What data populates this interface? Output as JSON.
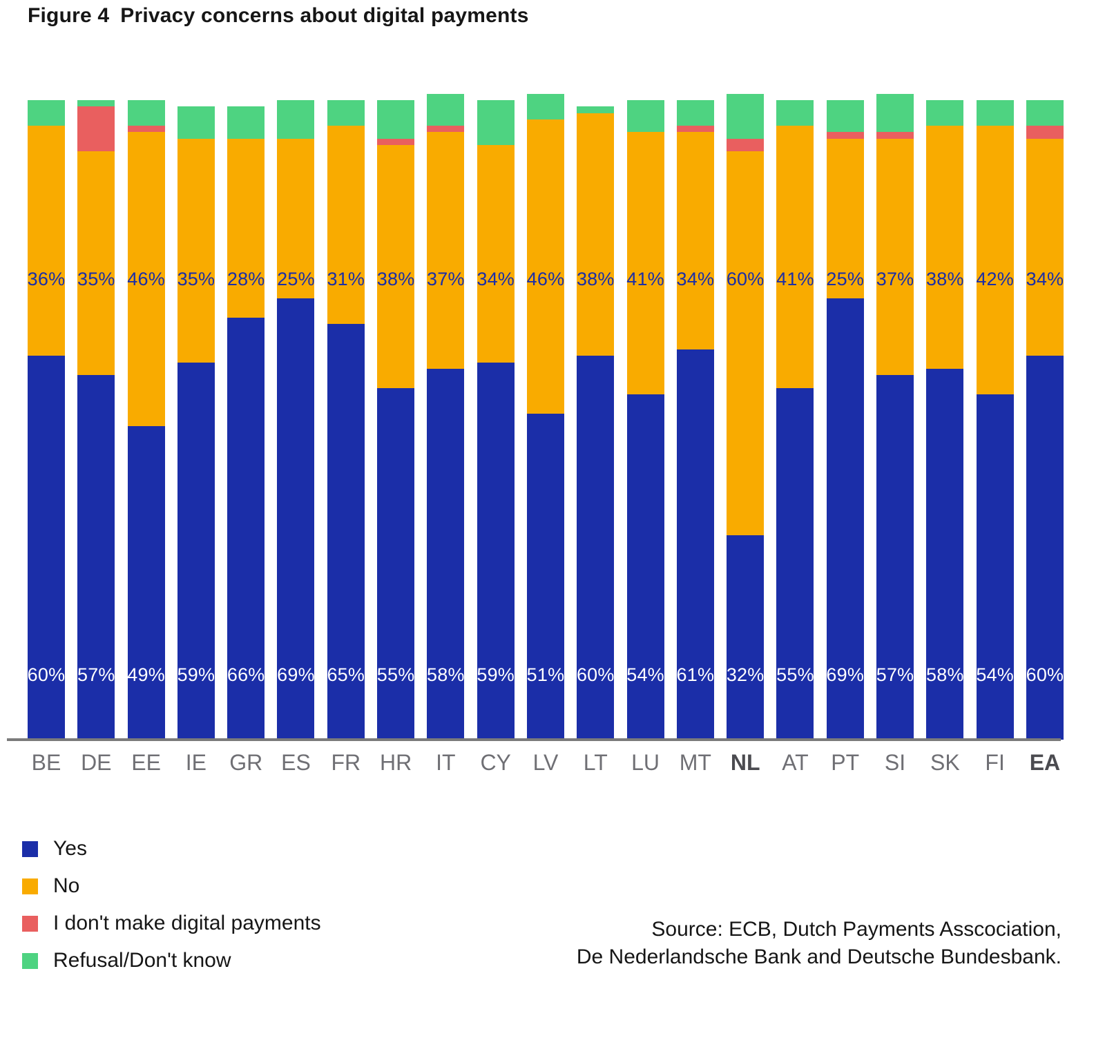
{
  "title": {
    "label": "Figure 4",
    "text": "Privacy concerns about digital payments"
  },
  "colors": {
    "yes": "#1B2EA8",
    "no": "#F9AB00",
    "no_payments": "#E95F5F",
    "refusal": "#4ED381",
    "axis": "#7B7B7B",
    "value_label_no": "#1B2EA8",
    "value_label_yes": "#FFFFFF",
    "category_label": "#6F6F74",
    "category_label_bold": "#4B4B50"
  },
  "chart_data": {
    "type": "bar",
    "stacked": true,
    "title": "Figure 4  Privacy concerns about digital payments",
    "xlabel": "",
    "ylabel": "",
    "ylim": [
      0,
      101
    ],
    "grid": false,
    "legend_position": "bottom-left",
    "categories": [
      "BE",
      "DE",
      "EE",
      "IE",
      "GR",
      "ES",
      "FR",
      "HR",
      "IT",
      "CY",
      "LV",
      "LT",
      "LU",
      "MT",
      "NL",
      "AT",
      "PT",
      "SI",
      "SK",
      "FI",
      "EA"
    ],
    "bold_categories": [
      "NL",
      "EA"
    ],
    "series": [
      {
        "name": "Yes",
        "color": "#1B2EA8",
        "values": [
          60,
          57,
          49,
          59,
          66,
          69,
          65,
          55,
          58,
          59,
          51,
          60,
          54,
          61,
          32,
          55,
          69,
          57,
          58,
          54,
          60
        ],
        "labels": [
          "60%",
          "57%",
          "49%",
          "59%",
          "66%",
          "69%",
          "65%",
          "55%",
          "58%",
          "59%",
          "51%",
          "60%",
          "54%",
          "61%",
          "32%",
          "55%",
          "69%",
          "57%",
          "58%",
          "54%",
          "60%"
        ]
      },
      {
        "name": "No",
        "color": "#F9AB00",
        "values": [
          36,
          35,
          46,
          35,
          28,
          25,
          31,
          38,
          37,
          34,
          46,
          38,
          41,
          34,
          60,
          41,
          25,
          37,
          38,
          42,
          34
        ],
        "labels": [
          "36%",
          "35%",
          "46%",
          "35%",
          "28%",
          "25%",
          "31%",
          "38%",
          "37%",
          "34%",
          "46%",
          "38%",
          "41%",
          "34%",
          "60%",
          "41%",
          "25%",
          "37%",
          "38%",
          "42%",
          "34%"
        ]
      },
      {
        "name": "I don't make digital payments",
        "color": "#E95F5F",
        "values": [
          0,
          7,
          1,
          0,
          0,
          0,
          0,
          1,
          1,
          0,
          0,
          0,
          0,
          1,
          2,
          0,
          1,
          1,
          0,
          0,
          2
        ]
      },
      {
        "name": "Refusal/Don't know",
        "color": "#4ED381",
        "values": [
          4,
          1,
          4,
          5,
          5,
          6,
          4,
          6,
          5,
          7,
          4,
          1,
          5,
          4,
          7,
          4,
          5,
          6,
          4,
          4,
          4
        ]
      }
    ]
  },
  "legend": {
    "items": [
      {
        "label": "Yes",
        "color": "#1B2EA8"
      },
      {
        "label": "No",
        "color": "#F9AB00"
      },
      {
        "label": "I don't make digital payments",
        "color": "#E95F5F"
      },
      {
        "label": "Refusal/Don't know",
        "color": "#4ED381"
      }
    ]
  },
  "source": {
    "line1": "Source: ECB, Dutch Payments Asscociation,",
    "line2": "De Nederlandsche Bank and Deutsche Bundesbank."
  }
}
